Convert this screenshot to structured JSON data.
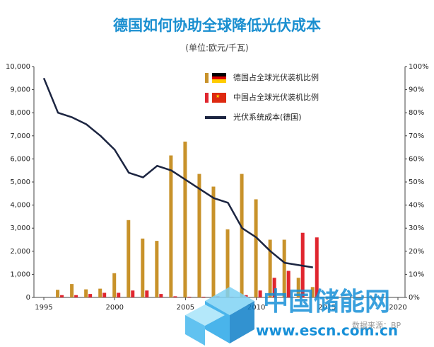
{
  "chart_data": {
    "type": "bar",
    "title": "德国如何协助全球降低光伏成本",
    "subtitle": "(单位:欧元/千瓦)",
    "source": "数据来源：BP",
    "watermark": [
      "中国储能网",
      "www.escn.com.cn"
    ],
    "x": [
      1995,
      1996,
      1997,
      1998,
      1999,
      2000,
      2001,
      2002,
      2003,
      2004,
      2005,
      2006,
      2007,
      2008,
      2009,
      2010,
      2011,
      2012,
      2013,
      2014
    ],
    "xlim": [
      1994.3,
      2020.5
    ],
    "xticks": [
      1995,
      2000,
      2005,
      2010,
      2015,
      2020
    ],
    "ylim": [
      0,
      10000
    ],
    "yticks": [
      0,
      {
        "value": 1000,
        "label": "1,000"
      },
      {
        "value": 2000,
        "label": "2,000"
      },
      {
        "value": 3000,
        "label": "3,000"
      },
      {
        "value": 4000,
        "label": "4,000"
      },
      {
        "value": 5000,
        "label": "5,000"
      },
      {
        "value": 6000,
        "label": "6,000"
      },
      {
        "value": 7000,
        "label": "7,000"
      },
      {
        "value": 8000,
        "label": "8,000"
      },
      {
        "value": 9000,
        "label": "9,000"
      },
      {
        "value": 10000,
        "label": "10,000"
      }
    ],
    "y2lim": [
      0,
      100
    ],
    "y2ticks": [
      {
        "value": 0,
        "label": "0%"
      },
      {
        "value": 10,
        "label": "10%"
      },
      {
        "value": 20,
        "label": "20%"
      },
      {
        "value": 30,
        "label": "30%"
      },
      {
        "value": 40,
        "label": "40%"
      },
      {
        "value": 50,
        "label": "50%"
      },
      {
        "value": 60,
        "label": "60%"
      },
      {
        "value": 70,
        "label": "70%"
      },
      {
        "value": 80,
        "label": "80%"
      },
      {
        "value": 90,
        "label": "90%"
      },
      {
        "value": 100,
        "label": "100%"
      }
    ],
    "series": [
      {
        "name": "德国占全球光伏装机比例",
        "type": "bar",
        "axis": "y2",
        "color": "#c8922a",
        "values": [
          null,
          3.3,
          5.8,
          3.5,
          3.8,
          10.5,
          33.5,
          25.5,
          24.5,
          61.5,
          67.5,
          53.5,
          48,
          29.5,
          53.5,
          42.5,
          25,
          25,
          8.5,
          4.5
        ]
      },
      {
        "name": "中国占全球光伏装机比例",
        "type": "bar",
        "axis": "y2",
        "color": "#e0262f",
        "values": [
          null,
          1,
          1,
          1.5,
          2,
          2,
          3,
          3,
          1.5,
          0.5,
          0.3,
          0.3,
          0.5,
          0.3,
          1,
          3,
          8.5,
          11.5,
          28,
          26
        ]
      },
      {
        "name": "光伏系统成本(德国)",
        "type": "line",
        "color": "#1c2541",
        "values": [
          9500,
          8000,
          7800,
          7500,
          7000,
          6400,
          5400,
          5200,
          5700,
          5500,
          5100,
          4700,
          4300,
          4100,
          3000,
          2600,
          2000,
          1500,
          1400,
          1300
        ]
      }
    ]
  }
}
